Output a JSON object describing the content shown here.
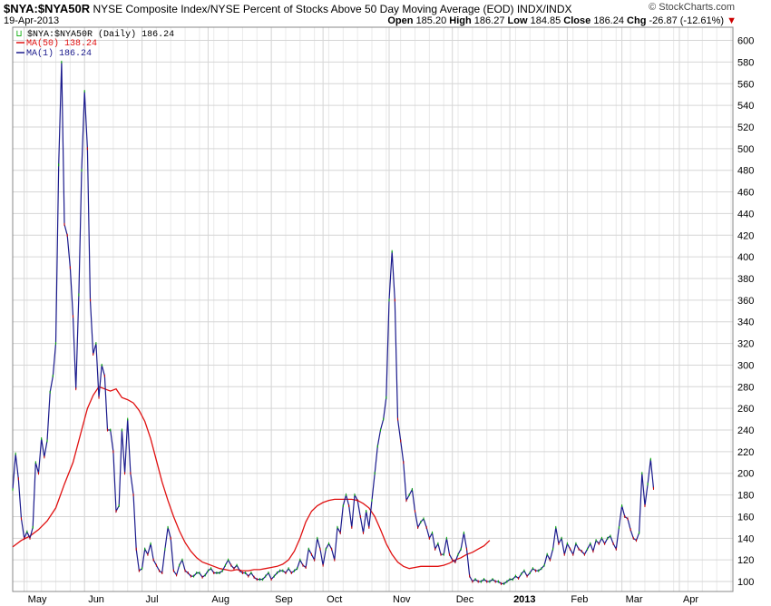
{
  "header": {
    "symbol": "$NYA:$NYA50R",
    "description": "NYSE Composite Index/NYSE Percent of Stocks Above 50 Day Moving Average (EOD) INDX/INDX",
    "date": "19-Apr-2013",
    "brand": "© StockCharts.com",
    "open_label": "Open",
    "open": "185.20",
    "high_label": "High",
    "high": "186.27",
    "low_label": "Low",
    "low": "184.85",
    "close_label": "Close",
    "close": "186.24",
    "chg_label": "Chg",
    "chg": "-26.87 (-12.61%)"
  },
  "legend": {
    "main": "$NYA:$NYA50R (Daily) 186.24",
    "ma50": "MA(50) 138.24",
    "ma1": "MA(1) 186.24"
  },
  "colors": {
    "price": "#1a1a8c",
    "ma50": "#e01010",
    "grid": "#d6d6d6",
    "up": "#00aa00",
    "down": "#cc0000"
  },
  "chart_data": {
    "type": "line",
    "title": "$NYA:$NYA50R (Daily)",
    "ylim": [
      95,
      608
    ],
    "y_ticks": [
      100,
      120,
      140,
      160,
      180,
      200,
      220,
      240,
      260,
      280,
      300,
      320,
      340,
      360,
      380,
      400,
      420,
      440,
      460,
      480,
      500,
      520,
      540,
      560,
      580,
      600
    ],
    "x_range": [
      0,
      250
    ],
    "x_ticks": [
      {
        "label": "May",
        "x": 4
      },
      {
        "label": "Jun",
        "x": 25
      },
      {
        "label": "Jul",
        "x": 45
      },
      {
        "label": "Aug",
        "x": 68
      },
      {
        "label": "Sep",
        "x": 90
      },
      {
        "label": "Oct",
        "x": 108
      },
      {
        "label": "Nov",
        "x": 131
      },
      {
        "label": "Dec",
        "x": 153
      },
      {
        "label": "2013",
        "x": 173
      },
      {
        "label": "Feb",
        "x": 193
      },
      {
        "label": "Mar",
        "x": 212
      },
      {
        "label": "Apr",
        "x": 232
      }
    ],
    "grid": true,
    "legend_position": "top-left",
    "series": [
      {
        "name": "MA(1)",
        "values": [
          [
            0,
            185
          ],
          [
            1,
            218
          ],
          [
            2,
            195
          ],
          [
            3,
            158
          ],
          [
            4,
            140
          ],
          [
            5,
            146
          ],
          [
            6,
            140
          ],
          [
            7,
            150
          ],
          [
            8,
            210
          ],
          [
            9,
            200
          ],
          [
            10,
            232
          ],
          [
            11,
            215
          ],
          [
            12,
            230
          ],
          [
            13,
            275
          ],
          [
            14,
            290
          ],
          [
            15,
            320
          ],
          [
            16,
            485
          ],
          [
            17,
            580
          ],
          [
            18,
            430
          ],
          [
            19,
            420
          ],
          [
            20,
            390
          ],
          [
            21,
            345
          ],
          [
            22,
            278
          ],
          [
            23,
            365
          ],
          [
            24,
            480
          ],
          [
            25,
            553
          ],
          [
            26,
            500
          ],
          [
            27,
            360
          ],
          [
            28,
            310
          ],
          [
            29,
            320
          ],
          [
            30,
            270
          ],
          [
            31,
            300
          ],
          [
            32,
            290
          ],
          [
            33,
            240
          ],
          [
            34,
            240
          ],
          [
            35,
            220
          ],
          [
            36,
            165
          ],
          [
            37,
            170
          ],
          [
            38,
            240
          ],
          [
            39,
            200
          ],
          [
            40,
            250
          ],
          [
            41,
            200
          ],
          [
            42,
            180
          ],
          [
            43,
            130
          ],
          [
            44,
            110
          ],
          [
            45,
            112
          ],
          [
            46,
            130
          ],
          [
            47,
            125
          ],
          [
            48,
            135
          ],
          [
            49,
            120
          ],
          [
            50,
            115
          ],
          [
            51,
            110
          ],
          [
            52,
            108
          ],
          [
            53,
            130
          ],
          [
            54,
            150
          ],
          [
            55,
            140
          ],
          [
            56,
            110
          ],
          [
            57,
            106
          ],
          [
            58,
            115
          ],
          [
            59,
            120
          ],
          [
            60,
            110
          ],
          [
            61,
            108
          ],
          [
            62,
            105
          ],
          [
            63,
            105
          ],
          [
            64,
            108
          ],
          [
            65,
            108
          ],
          [
            66,
            104
          ],
          [
            67,
            106
          ],
          [
            68,
            110
          ],
          [
            69,
            112
          ],
          [
            70,
            108
          ],
          [
            71,
            108
          ],
          [
            72,
            108
          ],
          [
            73,
            110
          ],
          [
            74,
            115
          ],
          [
            75,
            120
          ],
          [
            76,
            115
          ],
          [
            77,
            112
          ],
          [
            78,
            115
          ],
          [
            79,
            110
          ],
          [
            80,
            108
          ],
          [
            81,
            108
          ],
          [
            82,
            105
          ],
          [
            83,
            108
          ],
          [
            84,
            104
          ],
          [
            85,
            102
          ],
          [
            86,
            102
          ],
          [
            87,
            102
          ],
          [
            88,
            105
          ],
          [
            89,
            108
          ],
          [
            90,
            102
          ],
          [
            91,
            105
          ],
          [
            92,
            108
          ],
          [
            93,
            110
          ],
          [
            94,
            110
          ],
          [
            95,
            108
          ],
          [
            96,
            112
          ],
          [
            97,
            108
          ],
          [
            98,
            110
          ],
          [
            99,
            112
          ],
          [
            100,
            120
          ],
          [
            101,
            115
          ],
          [
            102,
            113
          ],
          [
            103,
            130
          ],
          [
            104,
            125
          ],
          [
            105,
            120
          ],
          [
            106,
            140
          ],
          [
            107,
            130
          ],
          [
            108,
            115
          ],
          [
            109,
            130
          ],
          [
            110,
            135
          ],
          [
            111,
            130
          ],
          [
            112,
            120
          ],
          [
            113,
            150
          ],
          [
            114,
            145
          ],
          [
            115,
            170
          ],
          [
            116,
            180
          ],
          [
            117,
            170
          ],
          [
            118,
            150
          ],
          [
            119,
            180
          ],
          [
            120,
            175
          ],
          [
            121,
            160
          ],
          [
            122,
            145
          ],
          [
            123,
            165
          ],
          [
            124,
            150
          ],
          [
            125,
            175
          ],
          [
            126,
            200
          ],
          [
            127,
            225
          ],
          [
            128,
            240
          ],
          [
            129,
            250
          ],
          [
            130,
            270
          ],
          [
            131,
            360
          ],
          [
            132,
            405
          ],
          [
            133,
            360
          ],
          [
            134,
            250
          ],
          [
            135,
            230
          ],
          [
            136,
            210
          ],
          [
            137,
            175
          ],
          [
            138,
            180
          ],
          [
            139,
            185
          ],
          [
            140,
            165
          ],
          [
            141,
            150
          ],
          [
            142,
            155
          ],
          [
            143,
            158
          ],
          [
            144,
            150
          ],
          [
            145,
            140
          ],
          [
            146,
            145
          ],
          [
            147,
            130
          ],
          [
            148,
            135
          ],
          [
            149,
            125
          ],
          [
            150,
            125
          ],
          [
            151,
            140
          ],
          [
            152,
            125
          ],
          [
            153,
            120
          ],
          [
            154,
            118
          ],
          [
            155,
            125
          ],
          [
            156,
            130
          ],
          [
            157,
            145
          ],
          [
            158,
            130
          ],
          [
            159,
            105
          ],
          [
            160,
            100
          ],
          [
            161,
            102
          ],
          [
            162,
            100
          ],
          [
            163,
            100
          ],
          [
            164,
            102
          ],
          [
            165,
            100
          ],
          [
            166,
            100
          ],
          [
            167,
            102
          ],
          [
            168,
            100
          ],
          [
            169,
            100
          ],
          [
            170,
            98
          ],
          [
            171,
            98
          ],
          [
            172,
            100
          ],
          [
            173,
            102
          ],
          [
            174,
            102
          ],
          [
            175,
            105
          ],
          [
            176,
            103
          ],
          [
            177,
            107
          ],
          [
            178,
            110
          ],
          [
            179,
            105
          ],
          [
            180,
            108
          ],
          [
            181,
            112
          ],
          [
            182,
            110
          ],
          [
            183,
            110
          ],
          [
            184,
            112
          ],
          [
            185,
            115
          ],
          [
            186,
            125
          ],
          [
            187,
            120
          ],
          [
            188,
            130
          ],
          [
            189,
            150
          ],
          [
            190,
            135
          ],
          [
            191,
            140
          ],
          [
            192,
            125
          ],
          [
            193,
            135
          ],
          [
            194,
            130
          ],
          [
            195,
            125
          ],
          [
            196,
            135
          ],
          [
            197,
            130
          ],
          [
            198,
            128
          ],
          [
            199,
            125
          ],
          [
            200,
            130
          ],
          [
            201,
            135
          ],
          [
            202,
            128
          ],
          [
            203,
            138
          ],
          [
            204,
            135
          ],
          [
            205,
            140
          ],
          [
            206,
            135
          ],
          [
            207,
            140
          ],
          [
            208,
            142
          ],
          [
            209,
            135
          ],
          [
            210,
            130
          ],
          [
            211,
            150
          ],
          [
            212,
            170
          ],
          [
            213,
            160
          ],
          [
            214,
            158
          ],
          [
            215,
            148
          ],
          [
            216,
            140
          ],
          [
            217,
            138
          ],
          [
            218,
            145
          ],
          [
            219,
            200
          ],
          [
            220,
            170
          ],
          [
            221,
            190
          ],
          [
            222,
            213
          ],
          [
            223,
            186
          ]
        ]
      },
      {
        "name": "MA(50)",
        "values": [
          [
            0,
            132
          ],
          [
            3,
            138
          ],
          [
            6,
            142
          ],
          [
            9,
            148
          ],
          [
            12,
            156
          ],
          [
            15,
            168
          ],
          [
            18,
            190
          ],
          [
            21,
            210
          ],
          [
            24,
            240
          ],
          [
            26,
            260
          ],
          [
            28,
            272
          ],
          [
            30,
            280
          ],
          [
            32,
            278
          ],
          [
            34,
            276
          ],
          [
            36,
            278
          ],
          [
            38,
            270
          ],
          [
            40,
            268
          ],
          [
            42,
            265
          ],
          [
            44,
            258
          ],
          [
            46,
            248
          ],
          [
            48,
            232
          ],
          [
            50,
            212
          ],
          [
            52,
            192
          ],
          [
            54,
            175
          ],
          [
            56,
            160
          ],
          [
            58,
            147
          ],
          [
            60,
            136
          ],
          [
            62,
            128
          ],
          [
            64,
            122
          ],
          [
            66,
            118
          ],
          [
            68,
            116
          ],
          [
            70,
            114
          ],
          [
            72,
            112
          ],
          [
            74,
            111
          ],
          [
            76,
            110
          ],
          [
            78,
            111
          ],
          [
            80,
            110
          ],
          [
            82,
            110
          ],
          [
            84,
            111
          ],
          [
            86,
            111
          ],
          [
            88,
            112
          ],
          [
            90,
            113
          ],
          [
            92,
            114
          ],
          [
            94,
            116
          ],
          [
            96,
            120
          ],
          [
            98,
            128
          ],
          [
            100,
            140
          ],
          [
            102,
            155
          ],
          [
            104,
            165
          ],
          [
            106,
            170
          ],
          [
            108,
            173
          ],
          [
            110,
            175
          ],
          [
            112,
            176
          ],
          [
            114,
            176
          ],
          [
            116,
            176
          ],
          [
            118,
            176
          ],
          [
            120,
            175
          ],
          [
            122,
            172
          ],
          [
            124,
            168
          ],
          [
            126,
            160
          ],
          [
            128,
            148
          ],
          [
            130,
            135
          ],
          [
            132,
            125
          ],
          [
            134,
            118
          ],
          [
            136,
            114
          ],
          [
            138,
            112
          ],
          [
            140,
            113
          ],
          [
            142,
            114
          ],
          [
            144,
            114
          ],
          [
            146,
            114
          ],
          [
            148,
            114
          ],
          [
            150,
            115
          ],
          [
            152,
            117
          ],
          [
            154,
            120
          ],
          [
            156,
            122
          ],
          [
            158,
            125
          ],
          [
            160,
            127
          ],
          [
            162,
            130
          ],
          [
            164,
            133
          ],
          [
            166,
            138
          ]
        ]
      }
    ]
  }
}
